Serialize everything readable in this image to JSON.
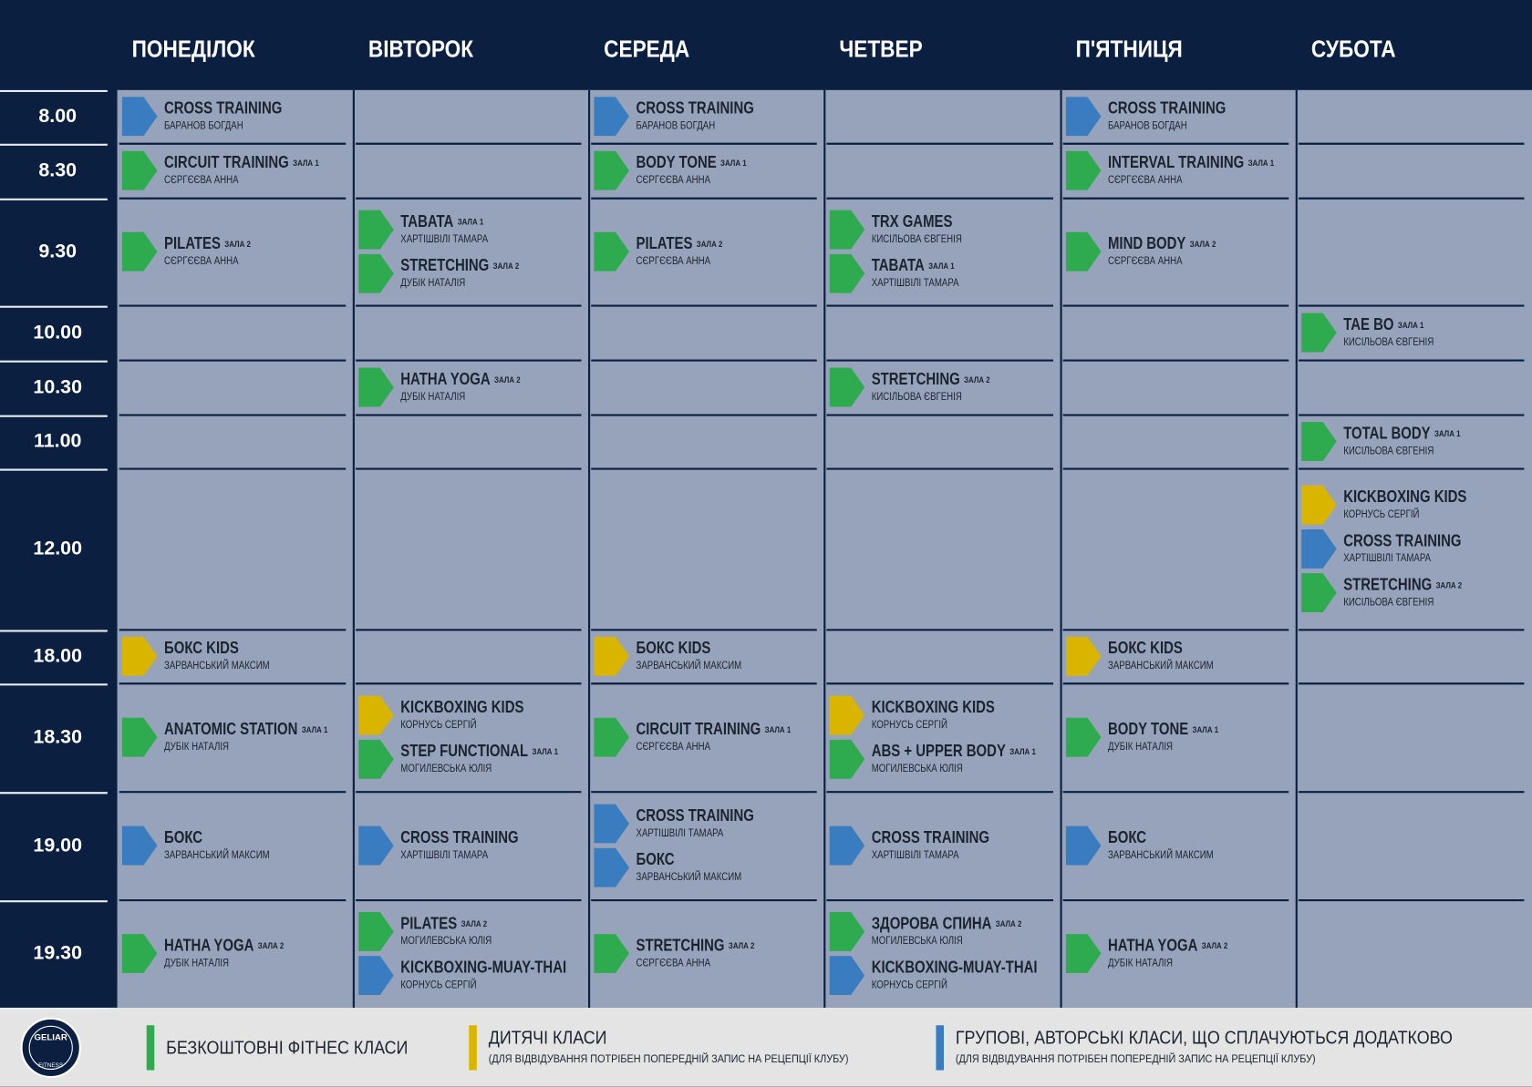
{
  "header": {
    "days": [
      "ПОНЕДІЛОК",
      "ВІВТОРОК",
      "СЕРЕДА",
      "ЧЕТВЕР",
      "П'ЯТНИЦЯ",
      "СУБОТА"
    ]
  },
  "schedule": {
    "rows": [
      {
        "time": "8.00",
        "cells": [
          [
            {
              "name": "CROSS TRAINING",
              "trainer": "БАРАНОВ БОГДАН",
              "color": "#3a7cc0"
            }
          ],
          [],
          [
            {
              "name": "CROSS TRAINING",
              "trainer": "БАРАНОВ БОГДАН",
              "color": "#3a7cc0"
            }
          ],
          [],
          [
            {
              "name": "CROSS TRAINING",
              "trainer": "БАРАНОВ БОГДАН",
              "color": "#3a7cc0"
            }
          ],
          []
        ]
      },
      {
        "time": "8.30",
        "cells": [
          [
            {
              "name": "CIRCUIT TRAINING",
              "hall": "ЗАЛА 1",
              "trainer": "СЄРГЄЄВА АННА",
              "color": "#2eaa4f"
            }
          ],
          [],
          [
            {
              "name": "BODY TONE",
              "hall": "ЗАЛА 1",
              "trainer": "СЄРГЄЄВА АННА",
              "color": "#2eaa4f"
            }
          ],
          [],
          [
            {
              "name": "INTERVAL TRAINING",
              "hall": "ЗАЛА 1",
              "trainer": "СЄРГЄЄВА АННА",
              "color": "#2eaa4f"
            }
          ],
          []
        ]
      },
      {
        "time": "9.30",
        "cells": [
          [
            {
              "name": "PILATES",
              "hall": "ЗАЛА 2",
              "trainer": "СЄРГЄЄВА АННА",
              "color": "#2eaa4f"
            }
          ],
          [
            {
              "name": "TABATA",
              "hall": "ЗАЛА 1",
              "trainer": "ХАРТІШВІЛІ ТАМАРА",
              "color": "#2eaa4f"
            },
            {
              "name": "STRETCHING",
              "hall": "ЗАЛА 2",
              "trainer": "ДУБІК НАТАЛІЯ",
              "color": "#2eaa4f"
            }
          ],
          [
            {
              "name": "PILATES",
              "hall": "ЗАЛА 2",
              "trainer": "СЄРГЄЄВА АННА",
              "color": "#2eaa4f"
            }
          ],
          [
            {
              "name": "TRX GAMES",
              "trainer": "КИСІЛЬОВА ЄВГЕНІЯ",
              "color": "#2eaa4f"
            },
            {
              "name": "TABATA",
              "hall": "ЗАЛА 1",
              "trainer": "ХАРТІШВІЛІ ТАМАРА",
              "color": "#2eaa4f"
            }
          ],
          [
            {
              "name": "MIND BODY",
              "hall": "ЗАЛА 2",
              "trainer": "СЄРГЄЄВА АННА",
              "color": "#2eaa4f"
            }
          ],
          []
        ]
      },
      {
        "time": "10.00",
        "cells": [
          [],
          [],
          [],
          [],
          [],
          [
            {
              "name": "TAE BO",
              "hall": "ЗАЛА 1",
              "trainer": "КИСІЛЬОВА ЄВГЕНІЯ",
              "color": "#2eaa4f"
            }
          ]
        ]
      },
      {
        "time": "10.30",
        "cells": [
          [],
          [
            {
              "name": "HATHA YOGA",
              "hall": "ЗАЛА 2",
              "trainer": "ДУБІК НАТАЛІЯ",
              "color": "#2eaa4f"
            }
          ],
          [],
          [
            {
              "name": "STRETCHING",
              "hall": "ЗАЛА 2",
              "trainer": "КИСІЛЬОВА ЄВГЕНІЯ",
              "color": "#2eaa4f"
            }
          ],
          [],
          []
        ]
      },
      {
        "time": "11.00",
        "cells": [
          [],
          [],
          [],
          [],
          [],
          [
            {
              "name": "TOTAL BODY",
              "hall": "ЗАЛА 1",
              "trainer": "КИСІЛЬОВА ЄВГЕНІЯ",
              "color": "#2eaa4f"
            }
          ]
        ]
      },
      {
        "time": "12.00",
        "cells": [
          [],
          [],
          [],
          [],
          [],
          [
            {
              "name": "KICKBOXING KIDS",
              "trainer": "КОРНУСЬ СЕРГІЙ",
              "color": "#d9b500"
            },
            {
              "name": "CROSS TRAINING",
              "trainer": "ХАРТІШВІЛІ ТАМАРА",
              "color": "#3a7cc0"
            },
            {
              "name": "STRETCHING",
              "hall": "ЗАЛА 2",
              "trainer": "КИСІЛЬОВА ЄВГЕНІЯ",
              "color": "#2eaa4f"
            }
          ]
        ]
      },
      {
        "time": "18.00",
        "cells": [
          [
            {
              "name": "БОКС KIDS",
              "trainer": "ЗАРВАНСЬКИЙ МАКСИМ",
              "color": "#d9b500"
            }
          ],
          [],
          [
            {
              "name": "БОКС KIDS",
              "trainer": "ЗАРВАНСЬКИЙ МАКСИМ",
              "color": "#d9b500"
            }
          ],
          [],
          [
            {
              "name": "БОКС KIDS",
              "trainer": "ЗАРВАНСЬКИЙ МАКСИМ",
              "color": "#d9b500"
            }
          ],
          []
        ]
      },
      {
        "time": "18.30",
        "cells": [
          [
            {
              "name": "ANATOMIC STATION",
              "hall": "ЗАЛА 1",
              "trainer": "ДУБІК НАТАЛІЯ",
              "color": "#2eaa4f"
            }
          ],
          [
            {
              "name": "KICKBOXING KIDS",
              "trainer": "КОРНУСЬ СЕРГІЙ",
              "color": "#d9b500"
            },
            {
              "name": "STEP FUNCTIONAL",
              "hall": "ЗАЛА 1",
              "trainer": "МОГИЛЕВСЬКА ЮЛІЯ",
              "color": "#2eaa4f"
            }
          ],
          [
            {
              "name": "CIRCUIT TRAINING",
              "hall": "ЗАЛА 1",
              "trainer": "СЄРГЄЄВА АННА",
              "color": "#2eaa4f"
            }
          ],
          [
            {
              "name": "KICKBOXING KIDS",
              "trainer": "КОРНУСЬ СЕРГІЙ",
              "color": "#d9b500"
            },
            {
              "name": "ABS + UPPER BODY",
              "hall": "ЗАЛА 1",
              "trainer": "МОГИЛЕВСЬКА ЮЛІЯ",
              "color": "#2eaa4f"
            }
          ],
          [
            {
              "name": "BODY TONE",
              "hall": "ЗАЛА 1",
              "trainer": "ДУБІК НАТАЛІЯ",
              "color": "#2eaa4f"
            }
          ],
          []
        ]
      },
      {
        "time": "19.00",
        "cells": [
          [
            {
              "name": "БОКС",
              "trainer": "ЗАРВАНСЬКИЙ МАКСИМ",
              "color": "#3a7cc0"
            }
          ],
          [
            {
              "name": "CROSS TRAINING",
              "trainer": "ХАРТІШВІЛІ ТАМАРА",
              "color": "#3a7cc0"
            }
          ],
          [
            {
              "name": "CROSS TRAINING",
              "trainer": "ХАРТІШВІЛІ ТАМАРА",
              "color": "#3a7cc0"
            },
            {
              "name": "БОКС",
              "trainer": "ЗАРВАНСЬКИЙ МАКСИМ",
              "color": "#3a7cc0"
            }
          ],
          [
            {
              "name": "CROSS TRAINING",
              "trainer": "ХАРТІШВІЛІ ТАМАРА",
              "color": "#3a7cc0"
            }
          ],
          [
            {
              "name": "БОКС",
              "trainer": "ЗАРВАНСЬКИЙ МАКСИМ",
              "color": "#3a7cc0"
            }
          ],
          []
        ]
      },
      {
        "time": "19.30",
        "cells": [
          [
            {
              "name": "HATHA YOGA",
              "hall": "ЗАЛА 2",
              "trainer": "ДУБІК НАТАЛІЯ",
              "color": "#2eaa4f"
            }
          ],
          [
            {
              "name": "PILATES",
              "hall": "ЗАЛА 2",
              "trainer": "МОГИЛЕВСЬКА ЮЛІЯ",
              "color": "#2eaa4f"
            },
            {
              "name": "KICKBOXING-MUAY-THAI",
              "trainer": "КОРНУСЬ СЕРГІЙ",
              "color": "#3a7cc0"
            }
          ],
          [
            {
              "name": "STRETCHING",
              "hall": "ЗАЛА 2",
              "trainer": "СЄРГЄЄВА АННА",
              "color": "#2eaa4f"
            }
          ],
          [
            {
              "name": "ЗДОРОВА СПИНА",
              "hall": "ЗАЛА 2",
              "trainer": "МОГИЛЕВСЬКА ЮЛІЯ",
              "color": "#2eaa4f"
            },
            {
              "name": "KICKBOXING-MUAY-THAI",
              "trainer": "КОРНУСЬ СЕРГІЙ",
              "color": "#3a7cc0"
            }
          ],
          [
            {
              "name": "HATHA YOGA",
              "hall": "ЗАЛА 2",
              "trainer": "ДУБІК НАТАЛІЯ",
              "color": "#2eaa4f"
            }
          ],
          []
        ]
      }
    ]
  },
  "footer": {
    "logo": {
      "name": "GELIAR",
      "sub": "FITNESS"
    },
    "legend": [
      {
        "title": "БЕЗКОШТОВНІ ФІТНЕС КЛАСИ",
        "color": "#2eaa4f"
      },
      {
        "title": "ДИТЯЧІ КЛАСИ",
        "note": "(ДЛЯ ВІДВІДУВАННЯ ПОТРІБЕН ПОПЕРЕДНІЙ ЗАПИС НА РЕЦЕПЦІЇ КЛУБУ)",
        "color": "#d9b500"
      },
      {
        "title": "ГРУПОВІ, АВТОРСЬКІ КЛАСИ, ЩО СПЛАЧУЮТЬСЯ ДОДАТКОВО",
        "note": "(ДЛЯ ВІДВІДУВАННЯ ПОТРІБЕН ПОПЕРЕДНІЙ ЗАПИС НА РЕЦЕПЦІЇ КЛУБУ)",
        "color": "#3a7cc0"
      }
    ]
  }
}
